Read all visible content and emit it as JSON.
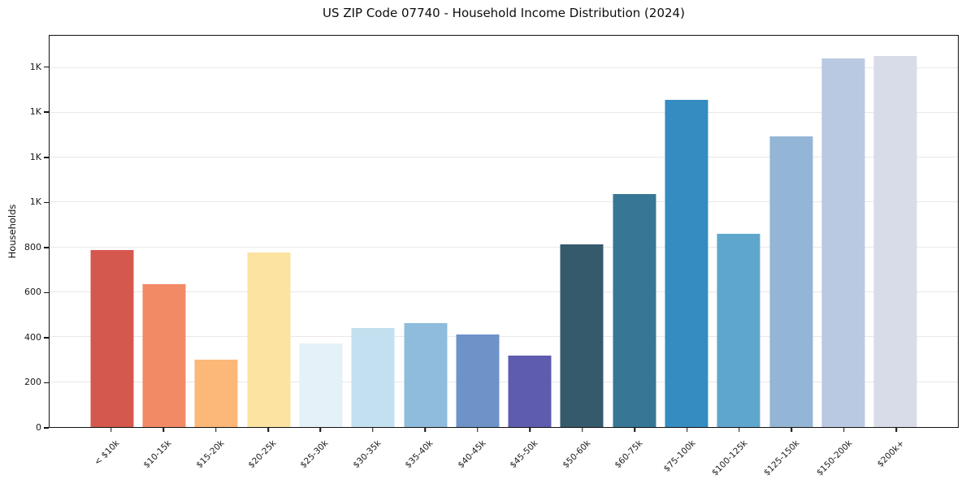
{
  "chart_data": {
    "type": "bar",
    "title": "US ZIP Code 07740 - Household Income Distribution (2024)",
    "xlabel": "",
    "ylabel": "Households",
    "categories": [
      "< $10k",
      "$10-15k",
      "$15-20k",
      "$20-25k",
      "$25-30k",
      "$30-35k",
      "$35-40k",
      "$40-45k",
      "$45-50k",
      "$50-60k",
      "$60-75k",
      "$75-100k",
      "$100-125k",
      "$125-150k",
      "$150-200k",
      "$200k+"
    ],
    "values": [
      789,
      637,
      299,
      777,
      371,
      442,
      464,
      414,
      317,
      812,
      1037,
      1459,
      861,
      1293,
      1642,
      1652
    ],
    "bar_colors": [
      "#d5584e",
      "#f28a66",
      "#fbb878",
      "#fce3a2",
      "#e4f1f8",
      "#c2e0ef",
      "#8fbcdc",
      "#6d93c8",
      "#5d5cae",
      "#345a6c",
      "#377795",
      "#358cc0",
      "#5fa6cc",
      "#93b6d7",
      "#b9c9e1",
      "#d8dbe8"
    ],
    "y_axis": {
      "tick_values": [
        0,
        200,
        400,
        600,
        800,
        1000,
        1200,
        1400,
        1600
      ],
      "tick_labels": [
        "0",
        "200",
        "400",
        "600",
        "800",
        "1K",
        "1K",
        "1K",
        "1K"
      ]
    },
    "ylim": [
      0,
      1743
    ],
    "xlim_slots": [
      -1.19,
      16.19
    ],
    "grid": "horizontal",
    "legend": "none",
    "axis_color": "#111111",
    "grid_color": "#e8e8e8",
    "background_color": "#ffffff"
  }
}
